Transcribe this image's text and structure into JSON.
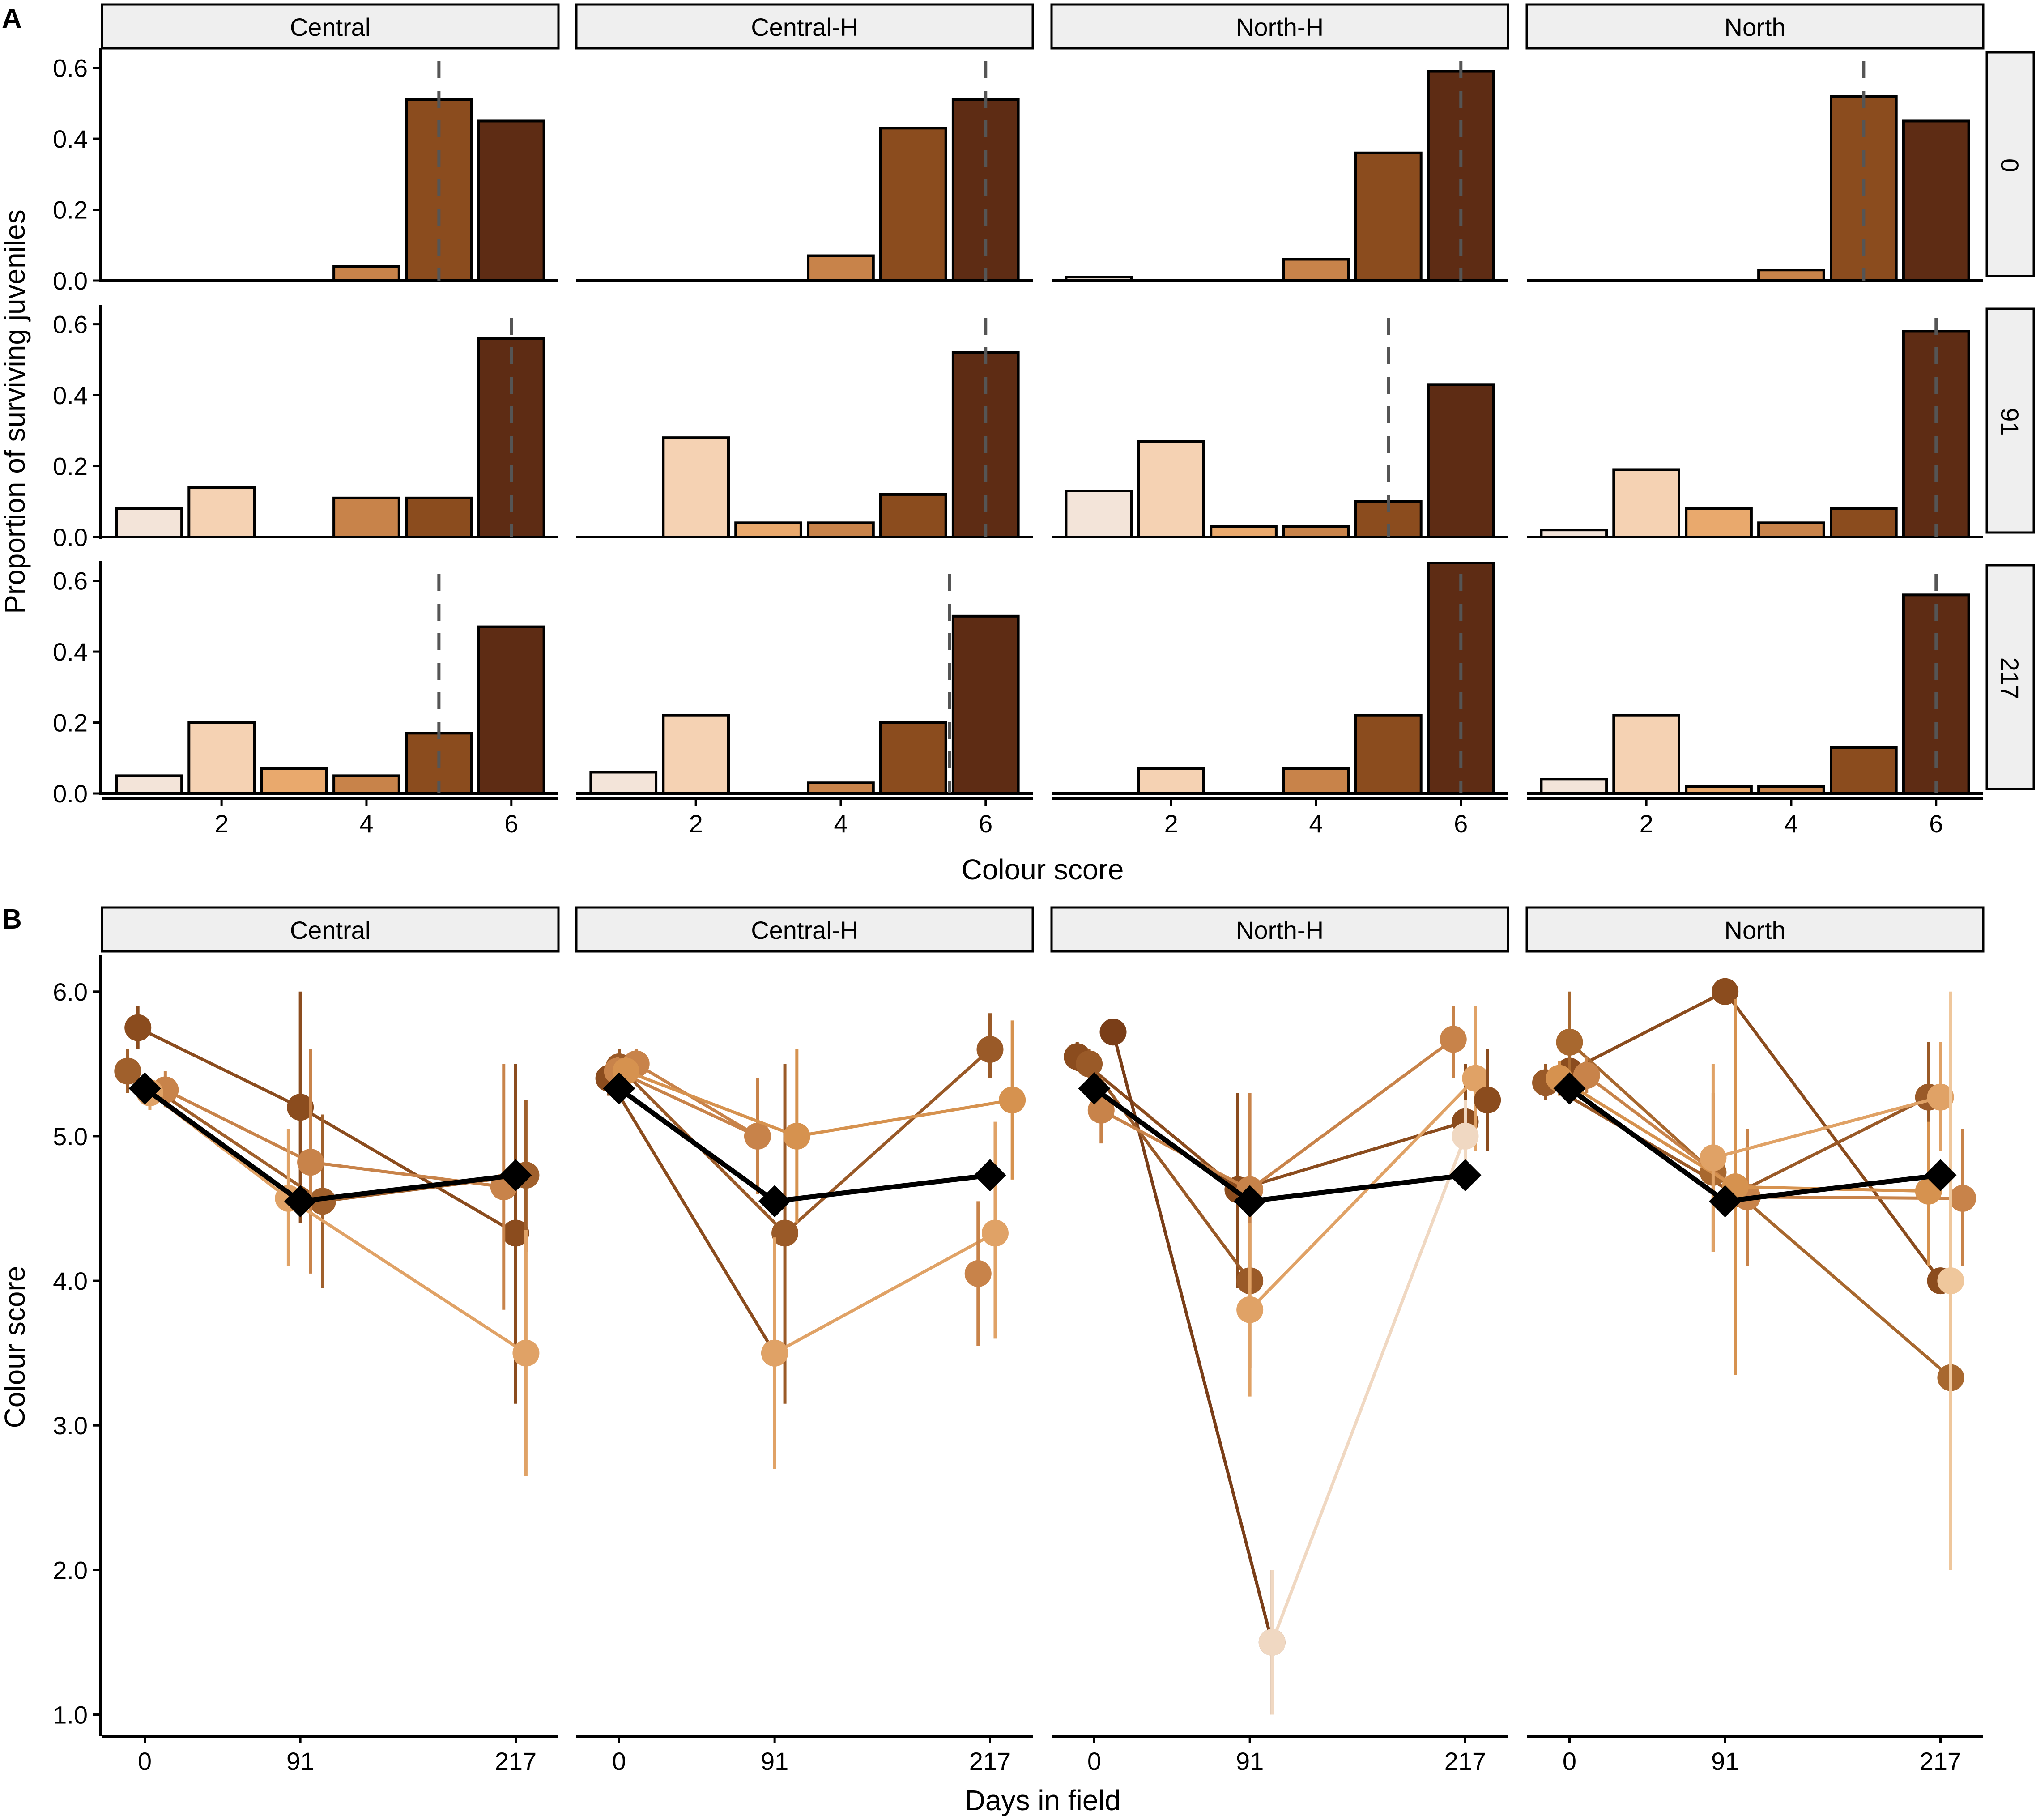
{
  "panel_labels": {
    "a": "A",
    "b": "B"
  },
  "facets": [
    "Central",
    "Central-H",
    "North-H",
    "North"
  ],
  "row_strips": [
    "0",
    "91",
    "217"
  ],
  "colors": {
    "score1": "#f3e4d9",
    "score2": "#f5d2b3",
    "score3": "#e9a96d",
    "score4": "#c8834a",
    "score5": "#8b4c1e",
    "score6": "#5e2c14",
    "mean_line": "#000000",
    "strip_fill": "#efefef",
    "dashed_line": "#555555"
  },
  "chart_data": [
    {
      "id": "A",
      "type": "bar",
      "xlabel": "Colour score",
      "ylabel": "Proportion of surviving juveniles",
      "ylim": [
        0,
        0.65
      ],
      "yticks": [
        0,
        0.2,
        0.4,
        0.6
      ],
      "ytick_labels": [
        "0.0",
        "0.2",
        "0.4",
        "0.6"
      ],
      "xlim": [
        0.35,
        6.65
      ],
      "xticks": [
        2,
        4,
        6
      ],
      "xtick_labels": [
        "2",
        "4",
        "6"
      ],
      "categories": [
        1,
        2,
        3,
        4,
        5,
        6
      ],
      "panels": [
        {
          "facet": "Central",
          "day": "0",
          "values": [
            0,
            0,
            0,
            0.04,
            0.51,
            0.45
          ],
          "median": 5
        },
        {
          "facet": "Central-H",
          "day": "0",
          "values": [
            0,
            0,
            0,
            0.07,
            0.43,
            0.51
          ],
          "median": 6
        },
        {
          "facet": "North-H",
          "day": "0",
          "values": [
            0.01,
            0,
            0,
            0.06,
            0.36,
            0.59
          ],
          "median": 6
        },
        {
          "facet": "North",
          "day": "0",
          "values": [
            0,
            0,
            0,
            0.03,
            0.52,
            0.45
          ],
          "median": 5
        },
        {
          "facet": "Central",
          "day": "91",
          "values": [
            0.08,
            0.14,
            0,
            0.11,
            0.11,
            0.56
          ],
          "median": 6
        },
        {
          "facet": "Central-H",
          "day": "91",
          "values": [
            0,
            0.28,
            0.04,
            0.04,
            0.12,
            0.52
          ],
          "median": 6
        },
        {
          "facet": "North-H",
          "day": "91",
          "values": [
            0.13,
            0.27,
            0.03,
            0.03,
            0.1,
            0.43
          ],
          "median": 5
        },
        {
          "facet": "North",
          "day": "91",
          "values": [
            0.02,
            0.19,
            0.08,
            0.04,
            0.08,
            0.58
          ],
          "median": 6
        },
        {
          "facet": "Central",
          "day": "217",
          "values": [
            0.05,
            0.2,
            0.07,
            0.05,
            0.17,
            0.47
          ],
          "median": 5
        },
        {
          "facet": "Central-H",
          "day": "217",
          "values": [
            0.06,
            0.22,
            0,
            0.03,
            0.2,
            0.5
          ],
          "median": 5.5
        },
        {
          "facet": "North-H",
          "day": "217",
          "values": [
            0,
            0.07,
            0,
            0.07,
            0.22,
            0.65
          ],
          "median": 6
        },
        {
          "facet": "North",
          "day": "217",
          "values": [
            0.04,
            0.22,
            0.02,
            0.02,
            0.13,
            0.56
          ],
          "median": 6
        }
      ]
    },
    {
      "id": "B",
      "type": "line",
      "xlabel": "Days in field",
      "ylabel": "Colour score",
      "ylim": [
        0.85,
        6.25
      ],
      "yticks": [
        1,
        2,
        3,
        4,
        5,
        6
      ],
      "ytick_labels": [
        "1.0",
        "2.0",
        "3.0",
        "4.0",
        "5.0",
        "6.0"
      ],
      "xlim": [
        -25,
        242
      ],
      "x": [
        0,
        91,
        217
      ],
      "xtick_labels": [
        "0",
        "91",
        "217"
      ],
      "mean": [
        5.33,
        4.55,
        4.73
      ],
      "panels": [
        {
          "facet": "Central",
          "series": [
            {
              "color": "#8b4c1e",
              "points": [
                [
                  -4,
                  5.75,
                  5.6,
                  5.9
                ],
                [
                  91,
                  5.2,
                  4.4,
                  6.0
                ],
                [
                  217,
                  4.33,
                  3.15,
                  5.5
                ]
              ]
            },
            {
              "color": "#a0602c",
              "points": [
                [
                  -10,
                  5.45,
                  5.3,
                  5.6
                ],
                [
                  104,
                  4.55,
                  3.95,
                  5.15
                ],
                [
                  223,
                  4.73,
                  4.2,
                  5.25
                ]
              ]
            },
            {
              "color": "#c8834a",
              "points": [
                [
                  12,
                  5.32,
                  5.2,
                  5.45
                ],
                [
                  97,
                  4.82,
                  4.05,
                  5.6
                ],
                [
                  210,
                  4.65,
                  3.8,
                  5.5
                ]
              ]
            },
            {
              "color": "#e0a266",
              "points": [
                [
                  3,
                  5.3,
                  5.18,
                  5.4
                ],
                [
                  84,
                  4.57,
                  4.1,
                  5.05
                ],
                [
                  223,
                  3.5,
                  2.65,
                  4.35
                ]
              ]
            }
          ]
        },
        {
          "facet": "Central-H",
          "series": [
            {
              "color": "#8b4c1e",
              "points": [
                [
                  -6,
                  5.4,
                  5.28,
                  5.52
                ],
                [
                  91,
                  3.5,
                  2.7,
                  4.3
                ]
              ]
            },
            {
              "color": "#9a5a28",
              "points": [
                [
                  0,
                  5.48,
                  5.35,
                  5.6
                ],
                [
                  97,
                  4.33,
                  3.15,
                  5.5
                ],
                [
                  217,
                  5.6,
                  5.4,
                  5.85
                ]
              ]
            },
            {
              "color": "#c8834a",
              "points": [
                [
                  10,
                  5.5,
                  5.4,
                  5.6
                ],
                [
                  81,
                  5.0,
                  4.6,
                  5.4
                ],
                [
                  -1,
                  5.45,
                  5.35,
                  5.55
                ]
              ]
            },
            {
              "color": "#d6924f",
              "points": [
                [
                  4,
                  5.45,
                  5.35,
                  5.55
                ],
                [
                  104,
                  5.0,
                  4.4,
                  5.6
                ],
                [
                  230,
                  5.25,
                  4.7,
                  5.8
                ]
              ]
            },
            {
              "color": "#e0a266",
              "points": [
                [
                  91,
                  3.5,
                  2.7,
                  4.3
                ],
                [
                  220,
                  4.33,
                  3.6,
                  5.1
                ]
              ]
            },
            {
              "color": "#c8834a",
              "points": [
                [
                  210,
                  4.05,
                  3.55,
                  4.55
                ]
              ]
            }
          ]
        },
        {
          "facet": "North-H",
          "series": [
            {
              "color": "#8b4c1e",
              "points": [
                [
                  -10,
                  5.55,
                  5.45,
                  5.65
                ],
                [
                  84,
                  4.63,
                  3.95,
                  5.3
                ],
                [
                  217,
                  5.1,
                  4.75,
                  5.5
                ]
              ]
            },
            {
              "color": "#7a3e18",
              "points": [
                [
                  11,
                  5.72,
                  5.72,
                  5.72
                ],
                [
                  104,
                  1.5,
                  1.0,
                  2.0
                ]
              ]
            },
            {
              "color": "#9a5a28",
              "points": [
                [
                  -3,
                  5.5,
                  5.4,
                  5.6
                ],
                [
                  91,
                  4.0,
                  3.4,
                  4.6
                ]
              ]
            },
            {
              "color": "#c8834a",
              "points": [
                [
                  4,
                  5.18,
                  4.95,
                  5.4
                ],
                [
                  91,
                  4.63,
                  3.95,
                  5.3
                ],
                [
                  210,
                  5.67,
                  5.4,
                  5.9
                ]
              ]
            },
            {
              "color": "#e0a266",
              "points": [
                [
                  91,
                  3.8,
                  3.2,
                  4.4
                ],
                [
                  223,
                  5.4,
                  4.9,
                  5.9
                ]
              ]
            },
            {
              "color": "#f0d8c2",
              "points": [
                [
                  104,
                  1.5,
                  1.0,
                  2.0
                ],
                [
                  217,
                  5.0,
                  4.75,
                  5.25
                ]
              ]
            },
            {
              "color": "#8b4c1e",
              "points": [
                [
                  230,
                  5.25,
                  4.9,
                  5.6
                ]
              ]
            }
          ]
        },
        {
          "facet": "North",
          "series": [
            {
              "color": "#8b4c1e",
              "points": [
                [
                  0,
                  5.45,
                  5.3,
                  5.6
                ],
                [
                  91,
                  6.0,
                  6.0,
                  6.0
                ],
                [
                  217,
                  4.0,
                  4.0,
                  4.0
                ]
              ]
            },
            {
              "color": "#9a5a28",
              "points": [
                [
                  -14,
                  5.37,
                  5.25,
                  5.5
                ],
                [
                  97,
                  4.6,
                  4.0,
                  5.2
                ],
                [
                  210,
                  5.27,
                  4.9,
                  5.65
                ]
              ]
            },
            {
              "color": "#a8682f",
              "points": [
                [
                  0,
                  5.65,
                  5.3,
                  6.0
                ],
                [
                  84,
                  4.75,
                  4.2,
                  5.3
                ],
                [
                  223,
                  3.33,
                  2.0,
                  4.67
                ]
              ]
            },
            {
              "color": "#c8834a",
              "points": [
                [
                  10,
                  5.42,
                  5.3,
                  5.55
                ],
                [
                  104,
                  4.58,
                  4.1,
                  5.05
                ],
                [
                  230,
                  4.57,
                  4.1,
                  5.05
                ]
              ]
            },
            {
              "color": "#d6924f",
              "points": [
                [
                  -6,
                  5.4,
                  5.28,
                  5.52
                ],
                [
                  97,
                  4.65,
                  3.35,
                  5.95
                ],
                [
                  210,
                  4.62,
                  4.1,
                  5.1
                ]
              ]
            },
            {
              "color": "#e0a266",
              "points": [
                [
                  84,
                  4.85,
                  4.2,
                  5.5
                ],
                [
                  217,
                  5.27,
                  4.9,
                  5.65
                ]
              ]
            },
            {
              "color": "#efc79c",
              "points": [
                [
                  223,
                  4.0,
                  2.0,
                  6.0
                ]
              ]
            }
          ]
        }
      ]
    }
  ]
}
